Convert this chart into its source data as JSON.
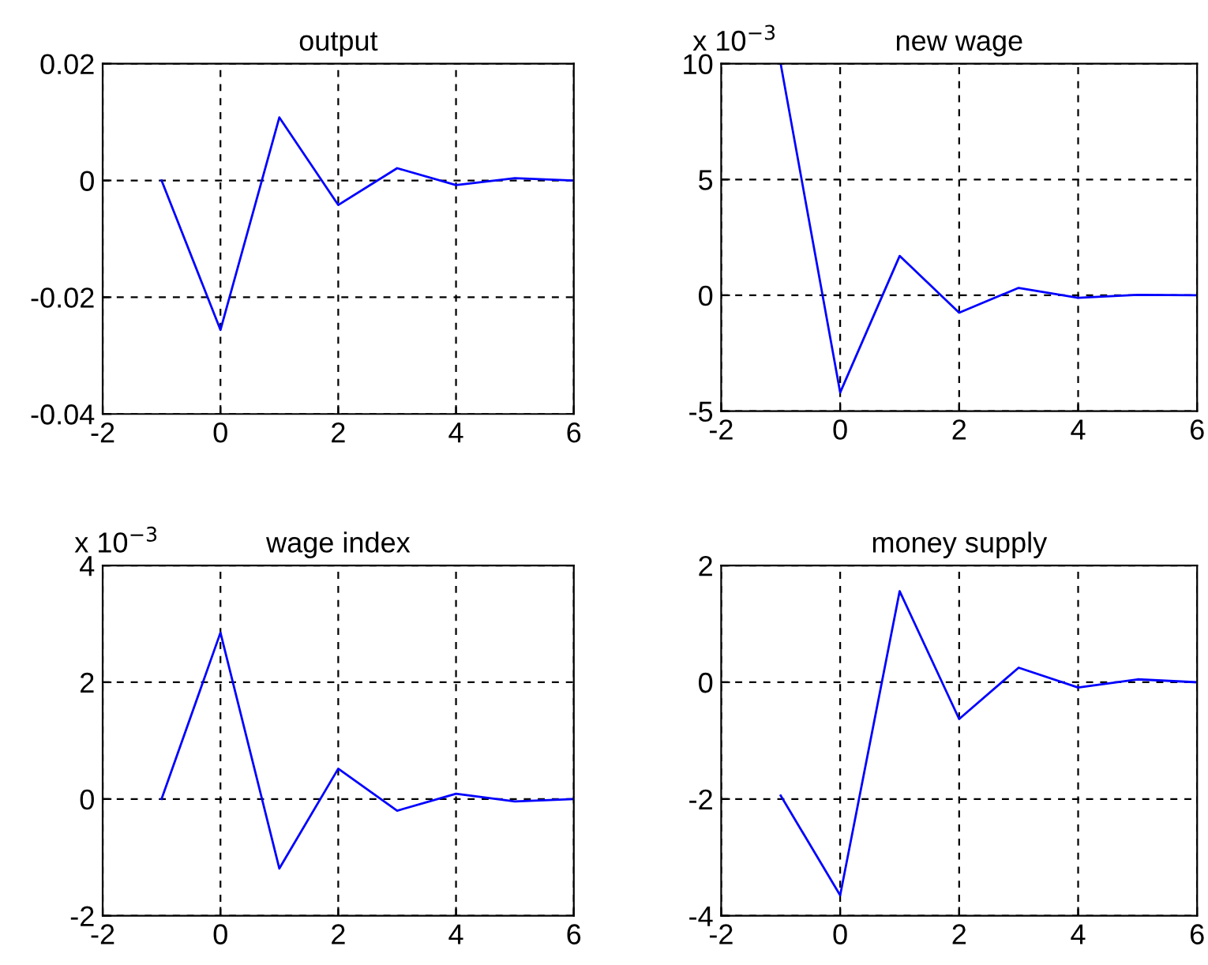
{
  "chart_data": [
    {
      "type": "line",
      "title": "output",
      "x": [
        -1,
        0,
        1,
        2,
        3,
        4,
        5,
        6
      ],
      "series": [
        {
          "color": "#0000ff",
          "values": [
            0,
            -0.0256,
            0.0108,
            -0.0042,
            0.0021,
            -0.0008,
            0.0004,
            0
          ]
        }
      ],
      "xlim": [
        -2,
        6
      ],
      "xticks": [
        -2,
        0,
        2,
        4,
        6
      ],
      "ylim": [
        -0.04,
        0.02
      ],
      "yticks": [
        -0.04,
        -0.02,
        0,
        0.02
      ],
      "grid": true,
      "line_style": "solid",
      "marker": "none"
    },
    {
      "type": "line",
      "title": "new wage",
      "annotations": [
        "x 10$^{−3}$"
      ],
      "x": [
        -1,
        0,
        1,
        2,
        3,
        4,
        5,
        6
      ],
      "series": [
        {
          "color": "#0000ff",
          "values": [
            10,
            -4.2,
            1.7,
            -0.75,
            0.32,
            -0.11,
            0.02,
            0
          ]
        }
      ],
      "xlim": [
        -2,
        6
      ],
      "xticks": [
        -2,
        0,
        2,
        4,
        6
      ],
      "ylim": [
        -5,
        10
      ],
      "yticks": [
        -5,
        0,
        5,
        10
      ],
      "grid": true,
      "line_style": "solid",
      "marker": "none"
    },
    {
      "type": "line",
      "title": "wage index",
      "annotations": [
        "x 10$^{−3}$"
      ],
      "x": [
        -1,
        0,
        1,
        2,
        3,
        4,
        5,
        6
      ],
      "series": [
        {
          "color": "#0000ff",
          "values": [
            0,
            2.85,
            -1.19,
            0.52,
            -0.2,
            0.09,
            -0.04,
            0
          ]
        }
      ],
      "xlim": [
        -2,
        6
      ],
      "xticks": [
        -2,
        0,
        2,
        4,
        6
      ],
      "ylim": [
        -2,
        4
      ],
      "yticks": [
        -2,
        0,
        2,
        4
      ],
      "grid": true,
      "line_style": "solid",
      "marker": "none"
    },
    {
      "type": "line",
      "title": "money supply",
      "x": [
        -1,
        0,
        1,
        2,
        3,
        4,
        5,
        6
      ],
      "series": [
        {
          "color": "#0000ff",
          "values": [
            -1.94,
            -3.65,
            1.56,
            -0.63,
            0.25,
            -0.09,
            0.05,
            0
          ]
        }
      ],
      "xlim": [
        -2,
        6
      ],
      "xticks": [
        -2,
        0,
        2,
        4,
        6
      ],
      "ylim": [
        -4,
        2
      ],
      "yticks": [
        -4,
        -2,
        0,
        2
      ],
      "grid": true,
      "line_style": "solid",
      "marker": "none"
    }
  ]
}
